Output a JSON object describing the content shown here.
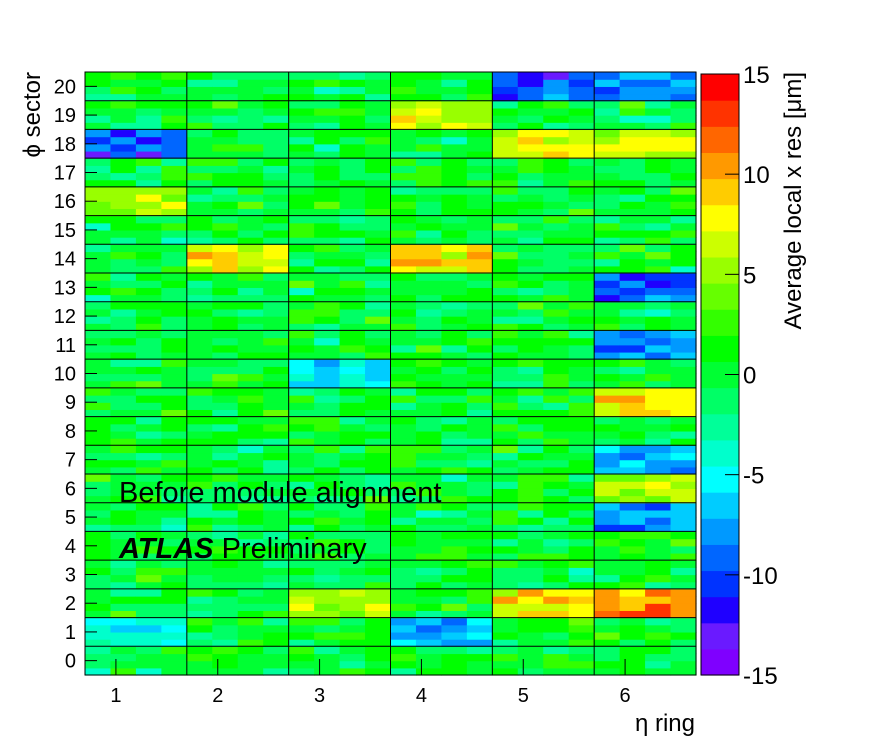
{
  "chart_data": {
    "type": "heatmap",
    "xlabel": "η ring",
    "ylabel": "ϕ sector",
    "zlabel": "Average local x res [μm]",
    "x_ticks": [
      "1",
      "2",
      "3",
      "4",
      "5",
      "6"
    ],
    "y_ticks": [
      "0",
      "1",
      "2",
      "3",
      "4",
      "5",
      "6",
      "7",
      "8",
      "9",
      "10",
      "11",
      "12",
      "13",
      "14",
      "15",
      "16",
      "17",
      "18",
      "19",
      "20"
    ],
    "z_ticks": [
      "15",
      "10",
      "5",
      "0",
      "-5",
      "-10",
      "-15"
    ],
    "zlim": [
      -15,
      15
    ],
    "xlim": [
      0.5,
      6.5
    ],
    "ylim": [
      -0.5,
      20.5
    ],
    "grid": "cell borders per ring and sector",
    "sub_bins_per_ring": 4,
    "sub_bins_per_sector": 4,
    "palette": [
      "#7f00ff",
      "#6a1aff",
      "#1f00ff",
      "#0033ff",
      "#0066ff",
      "#0099ff",
      "#00ccff",
      "#00ffff",
      "#00ffcc",
      "#00ff99",
      "#00ff66",
      "#00ff33",
      "#00ff00",
      "#33ff00",
      "#66ff00",
      "#99ff00",
      "#ccff00",
      "#ffff00",
      "#ffcc00",
      "#ff9900",
      "#ff6600",
      "#ff3300",
      "#ff0000"
    ],
    "annotation_1": "Before module alignment",
    "annotation_2_bold": "ATLAS",
    "annotation_2_rest": " Preliminary",
    "highlights": [
      {
        "ring": 5,
        "sector": 2,
        "value": 11
      },
      {
        "ring": 6,
        "sector": 2,
        "value": 13
      },
      {
        "ring": 4,
        "sector": 14,
        "value": 10
      },
      {
        "ring": 2,
        "sector": 14,
        "value": 10
      },
      {
        "ring": 5,
        "sector": 18,
        "value": 9
      },
      {
        "ring": 6,
        "sector": 18,
        "value": 9
      },
      {
        "ring": 4,
        "sector": 19,
        "value": 8
      },
      {
        "ring": 5,
        "sector": 20,
        "value": -13
      },
      {
        "ring": 6,
        "sector": 20,
        "value": -11
      },
      {
        "ring": 1,
        "sector": 18,
        "value": -12
      },
      {
        "ring": 6,
        "sector": 13,
        "value": -12
      },
      {
        "ring": 6,
        "sector": 11,
        "value": -10
      },
      {
        "ring": 6,
        "sector": 7,
        "value": -9
      },
      {
        "ring": 6,
        "sector": 5,
        "value": -10
      },
      {
        "ring": 3,
        "sector": 10,
        "value": -7
      },
      {
        "ring": 4,
        "sector": 1,
        "value": -9
      },
      {
        "ring": 1,
        "sector": 1,
        "value": -6
      },
      {
        "ring": 6,
        "sector": 9,
        "value": 11
      },
      {
        "ring": 6,
        "sector": 6,
        "value": 7
      },
      {
        "ring": 1,
        "sector": 16,
        "value": 7
      },
      {
        "ring": 3,
        "sector": 2,
        "value": 8
      }
    ]
  }
}
